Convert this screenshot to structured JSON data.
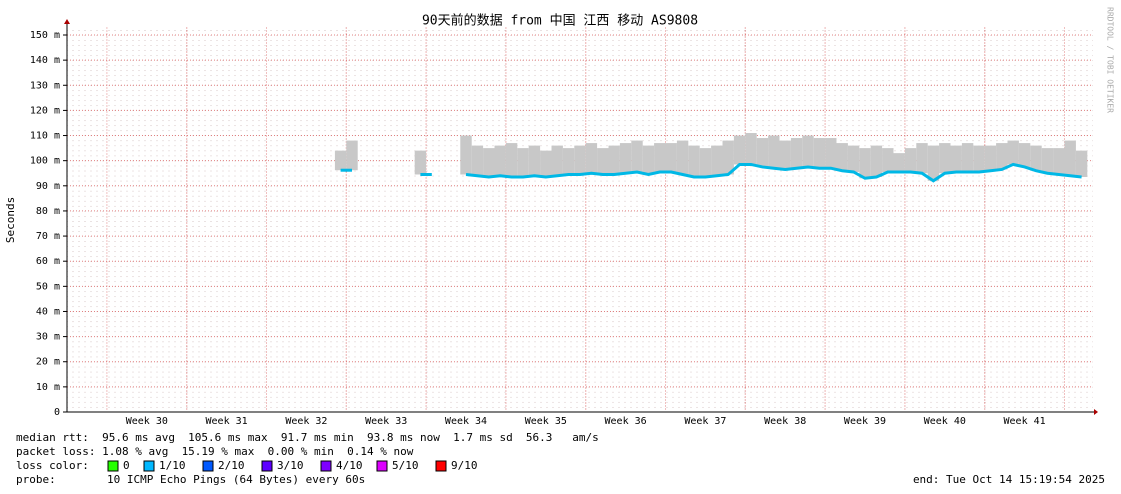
{
  "chart_data": {
    "type": "line",
    "title": "90天前的数据 from 中国 江西 移动 AS9808",
    "y_label": "Seconds",
    "watermark": "RRDTOOL / TOBI OETIKER",
    "ylim": [
      0,
      0.153
    ],
    "yticks": [
      {
        "value": 0,
        "label": "0"
      },
      {
        "value": 0.01,
        "label": "10 m"
      },
      {
        "value": 0.02,
        "label": "20 m"
      },
      {
        "value": 0.03,
        "label": "30 m"
      },
      {
        "value": 0.04,
        "label": "40 m"
      },
      {
        "value": 0.05,
        "label": "50 m"
      },
      {
        "value": 0.06,
        "label": "60 m"
      },
      {
        "value": 0.07,
        "label": "70 m"
      },
      {
        "value": 0.08,
        "label": "80 m"
      },
      {
        "value": 0.09,
        "label": "90 m"
      },
      {
        "value": 0.1,
        "label": "100 m"
      },
      {
        "value": 0.11,
        "label": "110 m"
      },
      {
        "value": 0.12,
        "label": "120 m"
      },
      {
        "value": 0.13,
        "label": "130 m"
      },
      {
        "value": 0.14,
        "label": "140 m"
      },
      {
        "value": 0.15,
        "label": "150 m"
      }
    ],
    "grid": true,
    "categories": [
      null,
      null,
      null,
      null,
      null,
      null,
      null,
      "Week 30",
      null,
      null,
      null,
      null,
      null,
      null,
      "Week 31",
      null,
      null,
      null,
      null,
      null,
      null,
      "Week 32",
      null,
      null,
      null,
      null,
      null,
      null,
      "Week 33",
      null,
      null,
      null,
      null,
      null,
      null,
      "Week 34",
      null,
      null,
      null,
      null,
      null,
      null,
      "Week 35",
      null,
      null,
      null,
      null,
      null,
      null,
      "Week 36",
      null,
      null,
      null,
      null,
      null,
      null,
      "Week 37",
      null,
      null,
      null,
      null,
      null,
      null,
      "Week 38",
      null,
      null,
      null,
      null,
      null,
      null,
      "Week 39",
      null,
      null,
      null,
      null,
      null,
      null,
      "Week 40",
      null,
      null,
      null,
      null,
      null,
      null,
      "Week 41",
      null,
      null,
      null,
      null,
      null
    ],
    "series": [
      {
        "color": "#00b8e6",
        "values": [
          null,
          null,
          null,
          null,
          null,
          null,
          null,
          null,
          null,
          null,
          null,
          null,
          null,
          null,
          null,
          null,
          null,
          null,
          null,
          null,
          null,
          null,
          null,
          null,
          0.0962,
          0.0962,
          null,
          null,
          null,
          null,
          null,
          0.0945,
          null,
          null,
          null,
          0.0945,
          0.094,
          0.0935,
          0.094,
          0.0935,
          0.0935,
          0.094,
          0.0935,
          0.094,
          0.0945,
          0.0945,
          0.095,
          0.0945,
          0.0945,
          0.095,
          0.0955,
          0.0945,
          0.0955,
          0.0955,
          0.0945,
          0.0935,
          0.0935,
          0.094,
          0.0945,
          0.0985,
          0.0985,
          0.0975,
          0.097,
          0.0965,
          0.097,
          0.0975,
          0.097,
          0.097,
          0.096,
          0.0955,
          0.093,
          0.0935,
          0.0955,
          0.0955,
          0.0955,
          0.095,
          0.092,
          0.095,
          0.0955,
          0.0955,
          0.0955,
          0.096,
          0.0965,
          0.0985,
          0.0975,
          0.096,
          0.095,
          0.0945,
          0.094,
          0.0935
        ]
      },
      {
        "color": "#c8c8c8",
        "values": [
          null,
          null,
          null,
          null,
          null,
          null,
          null,
          null,
          null,
          null,
          null,
          null,
          null,
          null,
          null,
          null,
          null,
          null,
          null,
          null,
          null,
          null,
          null,
          null,
          0.104,
          0.108,
          null,
          null,
          null,
          null,
          null,
          0.104,
          null,
          null,
          null,
          0.11,
          0.106,
          0.105,
          0.106,
          0.107,
          0.105,
          0.106,
          0.104,
          0.106,
          0.105,
          0.106,
          0.107,
          0.105,
          0.106,
          0.107,
          0.108,
          0.106,
          0.107,
          0.107,
          0.108,
          0.106,
          0.105,
          0.106,
          0.108,
          0.11,
          0.111,
          0.109,
          0.11,
          0.108,
          0.109,
          0.11,
          0.109,
          0.109,
          0.107,
          0.106,
          0.105,
          0.106,
          0.105,
          0.103,
          0.105,
          0.107,
          0.106,
          0.107,
          0.106,
          0.107,
          0.106,
          0.106,
          0.107,
          0.108,
          0.107,
          0.106,
          0.105,
          0.105,
          0.108,
          0.104
        ]
      }
    ],
    "stats": [
      "median rtt:  95.6 ms avg  105.6 ms max  91.7 ms min  93.8 ms now  1.7 ms sd  56.3   am/s",
      "packet loss: 1.08 % avg  15.19 % max  0.00 % min  0.14 % now"
    ],
    "loss_label": "loss color:",
    "loss_legend": [
      {
        "label": "0",
        "color": "#26ff00"
      },
      {
        "label": "1/10",
        "color": "#00b8ff"
      },
      {
        "label": "2/10",
        "color": "#0059ff"
      },
      {
        "label": "3/10",
        "color": "#5e00ff"
      },
      {
        "label": "4/10",
        "color": "#7e00ff"
      },
      {
        "label": "5/10",
        "color": "#dd00ff"
      },
      {
        "label": "9/10",
        "color": "#ff0000"
      }
    ],
    "probe_label": "probe:",
    "probe": "10 ICMP Echo Pings (64 Bytes) every 60s",
    "end": "end: Tue Oct 14 15:19:54 2025"
  }
}
